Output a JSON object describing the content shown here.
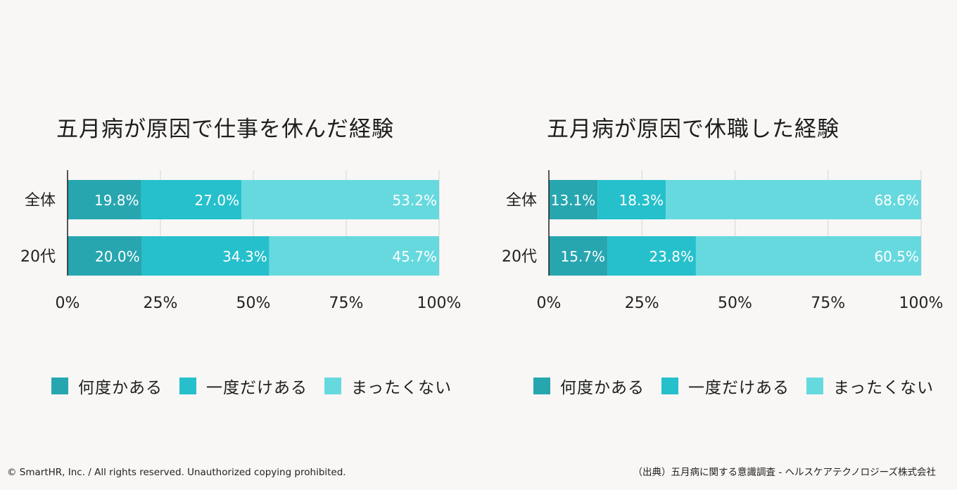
{
  "chart_data": [
    {
      "type": "bar",
      "orientation": "horizontal",
      "stacked": true,
      "title": "五月病が原因で仕事を休んだ経験",
      "categories": [
        "全体",
        "20代"
      ],
      "series": [
        {
          "name": "何度かある",
          "values": [
            19.8,
            20.0
          ],
          "labels": [
            "19.8%",
            "20.0%"
          ],
          "color": "#27a6b0"
        },
        {
          "name": "一度だけある",
          "values": [
            27.0,
            34.3
          ],
          "labels": [
            "27.0%",
            "34.3%"
          ],
          "color": "#26c0cc"
        },
        {
          "name": "まったくない",
          "values": [
            53.2,
            45.7
          ],
          "labels": [
            "53.2%",
            "45.7%"
          ],
          "color": "#66d9df"
        }
      ],
      "xlim": [
        0,
        100
      ],
      "x_ticks": [
        "0%",
        "25%",
        "50%",
        "75%",
        "100%"
      ],
      "grid": true,
      "legend_position": "bottom"
    },
    {
      "type": "bar",
      "orientation": "horizontal",
      "stacked": true,
      "title": "五月病が原因で休職した経験",
      "categories": [
        "全体",
        "20代"
      ],
      "series": [
        {
          "name": "何度かある",
          "values": [
            13.1,
            15.7
          ],
          "labels": [
            "13.1%",
            "15.7%"
          ],
          "color": "#27a6b0"
        },
        {
          "name": "一度だけある",
          "values": [
            18.3,
            23.8
          ],
          "labels": [
            "18.3%",
            "23.8%"
          ],
          "color": "#26c0cc"
        },
        {
          "name": "まったくない",
          "values": [
            68.6,
            60.5
          ],
          "labels": [
            "68.6%",
            "60.5%"
          ],
          "color": "#66d9df"
        }
      ],
      "xlim": [
        0,
        100
      ],
      "x_ticks": [
        "0%",
        "25%",
        "50%",
        "75%",
        "100%"
      ],
      "grid": true,
      "legend_position": "bottom"
    }
  ],
  "footer": {
    "copyright": "© SmartHR, Inc. / All rights reserved. Unauthorized copying prohibited.",
    "source": "（出典）五月病に関する意識調査 - ヘルスケアテクノロジーズ株式会社"
  }
}
